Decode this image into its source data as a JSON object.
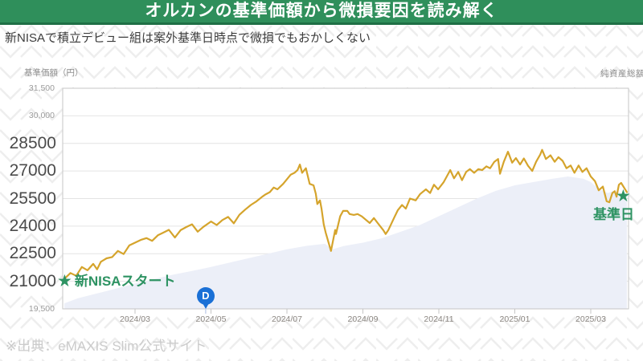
{
  "header": {
    "title": "オルカンの基準価額から微損要因を読み解く"
  },
  "subtitle": "新NISAで積立デビュー組は案外基準日時点で微損でもおかしくない",
  "footer": {
    "source": "※出典：eMAXIS Slim公式サイト"
  },
  "icons": {
    "star": "★"
  },
  "colors": {
    "header_bg": "#2F8F5B",
    "header_border": "#1F6F45",
    "accent_green": "#2E9363",
    "line_gold": "#D5A42C",
    "area_fill": "#ECEFF8",
    "marker_blue": "#1A70D6",
    "grid": "#E4E4E4",
    "plot_border": "#C6C6C6",
    "pattern": "#EEEEEE",
    "big_tick_text": "#4B4B4B",
    "small_tick_text": "#9B9B9B",
    "x_tick_text": "#8A8580"
  },
  "chart_data": {
    "type": "line",
    "title": "",
    "y_axis": {
      "label": "基準価額（円）",
      "min": 19500,
      "max": 31500,
      "gridlines": [
        30000,
        28500,
        27000,
        25500,
        24000,
        22500,
        21000
      ],
      "ticks_small": [
        {
          "v": 31500,
          "label": "31,500"
        },
        {
          "v": 30000,
          "label": "30,000"
        },
        {
          "v": 19500,
          "label": "19,500"
        }
      ],
      "ticks_large": [
        {
          "v": 28500,
          "label": "28500"
        },
        {
          "v": 27000,
          "label": "27000"
        },
        {
          "v": 25500,
          "label": "25500"
        },
        {
          "v": 24000,
          "label": "24000"
        },
        {
          "v": 22500,
          "label": "22500"
        },
        {
          "v": 21000,
          "label": "21000"
        }
      ]
    },
    "y2_axis": {
      "label": "純資産総額"
    },
    "x_axis": {
      "note": "m = months since 2024-01-01",
      "ticks": [
        {
          "m": 2,
          "label": "2024/03"
        },
        {
          "m": 4,
          "label": "2024/05"
        },
        {
          "m": 6,
          "label": "2024/07"
        },
        {
          "m": 8,
          "label": "2024/09"
        },
        {
          "m": 10,
          "label": "2024/11"
        },
        {
          "m": 12,
          "label": "2025/01"
        },
        {
          "m": 14,
          "label": "2025/03"
        }
      ]
    },
    "series": [
      {
        "name": "基準価額",
        "color": "#D5A42C",
        "points": [
          [
            0.14,
            21130
          ],
          [
            0.3,
            21450
          ],
          [
            0.45,
            21300
          ],
          [
            0.6,
            21780
          ],
          [
            0.75,
            21600
          ],
          [
            0.9,
            21950
          ],
          [
            1.0,
            21650
          ],
          [
            1.1,
            22060
          ],
          [
            1.25,
            22250
          ],
          [
            1.4,
            22320
          ],
          [
            1.55,
            22650
          ],
          [
            1.7,
            22480
          ],
          [
            1.85,
            22950
          ],
          [
            2.0,
            23100
          ],
          [
            2.15,
            23250
          ],
          [
            2.3,
            23350
          ],
          [
            2.45,
            23200
          ],
          [
            2.6,
            23500
          ],
          [
            2.75,
            23650
          ],
          [
            2.89,
            23800
          ],
          [
            3.05,
            23380
          ],
          [
            3.2,
            23780
          ],
          [
            3.35,
            23950
          ],
          [
            3.5,
            24100
          ],
          [
            3.65,
            23700
          ],
          [
            3.8,
            23960
          ],
          [
            4.0,
            24250
          ],
          [
            4.15,
            24060
          ],
          [
            4.3,
            24330
          ],
          [
            4.45,
            24500
          ],
          [
            4.6,
            24150
          ],
          [
            4.75,
            24620
          ],
          [
            4.9,
            24900
          ],
          [
            5.05,
            25150
          ],
          [
            5.2,
            25350
          ],
          [
            5.35,
            25600
          ],
          [
            5.43,
            25720
          ],
          [
            5.55,
            25850
          ],
          [
            5.65,
            26100
          ],
          [
            5.75,
            26000
          ],
          [
            5.9,
            26300
          ],
          [
            6.0,
            26550
          ],
          [
            6.1,
            26800
          ],
          [
            6.2,
            26900
          ],
          [
            6.28,
            27050
          ],
          [
            6.34,
            27350
          ],
          [
            6.4,
            26900
          ],
          [
            6.5,
            27150
          ],
          [
            6.6,
            26300
          ],
          [
            6.7,
            26220
          ],
          [
            6.76,
            25760
          ],
          [
            6.8,
            25200
          ],
          [
            6.87,
            25400
          ],
          [
            6.91,
            24960
          ],
          [
            6.97,
            24090
          ],
          [
            7.02,
            23650
          ],
          [
            7.16,
            22650
          ],
          [
            7.27,
            23790
          ],
          [
            7.29,
            23570
          ],
          [
            7.4,
            24530
          ],
          [
            7.48,
            24830
          ],
          [
            7.59,
            24830
          ],
          [
            7.65,
            24660
          ],
          [
            7.76,
            24610
          ],
          [
            7.86,
            24660
          ],
          [
            7.97,
            24530
          ],
          [
            8.18,
            24170
          ],
          [
            8.29,
            24440
          ],
          [
            8.39,
            24170
          ],
          [
            8.54,
            23770
          ],
          [
            8.6,
            23570
          ],
          [
            8.67,
            23790
          ],
          [
            8.82,
            24440
          ],
          [
            8.92,
            24870
          ],
          [
            9.03,
            25150
          ],
          [
            9.13,
            24950
          ],
          [
            9.24,
            25500
          ],
          [
            9.39,
            25400
          ],
          [
            9.51,
            25750
          ],
          [
            9.66,
            26000
          ],
          [
            9.77,
            25800
          ],
          [
            9.87,
            26250
          ],
          [
            9.98,
            26000
          ],
          [
            10.13,
            26400
          ],
          [
            10.3,
            27050
          ],
          [
            10.4,
            26600
          ],
          [
            10.51,
            26950
          ],
          [
            10.61,
            26500
          ],
          [
            10.72,
            26950
          ],
          [
            10.82,
            27100
          ],
          [
            10.93,
            26900
          ],
          [
            11.04,
            27100
          ],
          [
            11.14,
            27050
          ],
          [
            11.25,
            27250
          ],
          [
            11.35,
            27150
          ],
          [
            11.46,
            27500
          ],
          [
            11.56,
            27650
          ],
          [
            11.61,
            26850
          ],
          [
            11.71,
            27500
          ],
          [
            11.82,
            28050
          ],
          [
            11.93,
            27450
          ],
          [
            12.03,
            27700
          ],
          [
            12.14,
            27350
          ],
          [
            12.24,
            27680
          ],
          [
            12.35,
            27280
          ],
          [
            12.46,
            27000
          ],
          [
            12.56,
            27500
          ],
          [
            12.67,
            27900
          ],
          [
            12.72,
            28150
          ],
          [
            12.82,
            27650
          ],
          [
            12.94,
            27850
          ],
          [
            13.05,
            27500
          ],
          [
            13.15,
            27750
          ],
          [
            13.26,
            27550
          ],
          [
            13.36,
            27150
          ],
          [
            13.47,
            27300
          ],
          [
            13.57,
            26900
          ],
          [
            13.68,
            27300
          ],
          [
            13.78,
            26950
          ],
          [
            13.89,
            27150
          ],
          [
            14.0,
            26700
          ],
          [
            14.11,
            26450
          ],
          [
            14.21,
            25950
          ],
          [
            14.32,
            26150
          ],
          [
            14.42,
            25350
          ],
          [
            14.49,
            25300
          ],
          [
            14.57,
            25800
          ],
          [
            14.63,
            25900
          ],
          [
            14.68,
            25600
          ],
          [
            14.74,
            26250
          ],
          [
            14.8,
            26350
          ],
          [
            14.89,
            26050
          ],
          [
            14.95,
            25850
          ]
        ]
      },
      {
        "name": "純資産総額",
        "color": "#ECEFF8",
        "note": "right axis values not visible; heights as fraction of plot height",
        "points_relative": [
          [
            0.14,
            0.025
          ],
          [
            0.5,
            0.048
          ],
          [
            1.0,
            0.07
          ],
          [
            1.5,
            0.092
          ],
          [
            2.0,
            0.115
          ],
          [
            2.5,
            0.135
          ],
          [
            3.0,
            0.155
          ],
          [
            3.5,
            0.172
          ],
          [
            4.0,
            0.19
          ],
          [
            4.5,
            0.21
          ],
          [
            5.0,
            0.23
          ],
          [
            5.5,
            0.25
          ],
          [
            6.0,
            0.27
          ],
          [
            6.5,
            0.285
          ],
          [
            7.0,
            0.295
          ],
          [
            7.2,
            0.27
          ],
          [
            7.5,
            0.285
          ],
          [
            8.0,
            0.3
          ],
          [
            8.5,
            0.32
          ],
          [
            9.0,
            0.35
          ],
          [
            9.5,
            0.38
          ],
          [
            10.0,
            0.42
          ],
          [
            10.5,
            0.46
          ],
          [
            11.0,
            0.5
          ],
          [
            11.5,
            0.535
          ],
          [
            12.0,
            0.56
          ],
          [
            12.5,
            0.575
          ],
          [
            13.0,
            0.59
          ],
          [
            13.4,
            0.6
          ],
          [
            13.8,
            0.59
          ],
          [
            14.0,
            0.575
          ],
          [
            14.2,
            0.545
          ],
          [
            14.45,
            0.525
          ],
          [
            14.6,
            0.535
          ],
          [
            14.8,
            0.525
          ],
          [
            14.95,
            0.52
          ]
        ]
      }
    ],
    "annotations": {
      "start": {
        "label": "新NISAスタート",
        "m": 0.18,
        "v": 21000
      },
      "end": {
        "label": "基準日",
        "m": 14.89,
        "v": 25630
      },
      "marker_d": {
        "label": "D",
        "m": 3.86
      }
    }
  }
}
